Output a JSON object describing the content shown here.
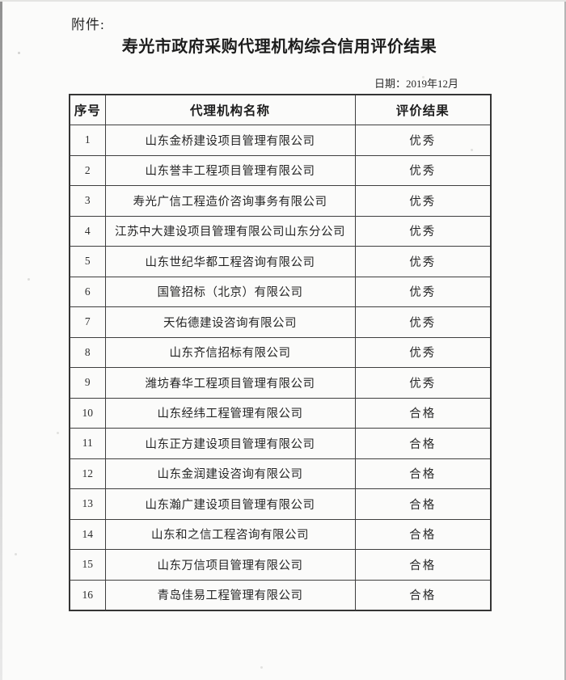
{
  "page": {
    "attachment_label": "附件:",
    "title": "寿光市政府采购代理机构综合信用评价结果",
    "date_label": "日期：2019年12月"
  },
  "table": {
    "columns": [
      "序号",
      "代理机构名称",
      "评价结果"
    ],
    "rows": [
      {
        "index": "1",
        "name": "山东金桥建设项目管理有限公司",
        "result": "优秀"
      },
      {
        "index": "2",
        "name": "山东誉丰工程项目管理有限公司",
        "result": "优秀"
      },
      {
        "index": "3",
        "name": "寿光广信工程造价咨询事务有限公司",
        "result": "优秀"
      },
      {
        "index": "4",
        "name": "江苏中大建设项目管理有限公司山东分公司",
        "result": "优秀"
      },
      {
        "index": "5",
        "name": "山东世纪华都工程咨询有限公司",
        "result": "优秀"
      },
      {
        "index": "6",
        "name": "国管招标（北京）有限公司",
        "result": "优秀"
      },
      {
        "index": "7",
        "name": "天佑德建设咨询有限公司",
        "result": "优秀"
      },
      {
        "index": "8",
        "name": "山东齐信招标有限公司",
        "result": "优秀"
      },
      {
        "index": "9",
        "name": "潍坊春华工程项目管理有限公司",
        "result": "优秀"
      },
      {
        "index": "10",
        "name": "山东经纬工程管理有限公司",
        "result": "合格"
      },
      {
        "index": "11",
        "name": "山东正方建设项目管理有限公司",
        "result": "合格"
      },
      {
        "index": "12",
        "name": "山东金润建设咨询有限公司",
        "result": "合格"
      },
      {
        "index": "13",
        "name": "山东瀚广建设项目管理有限公司",
        "result": "合格"
      },
      {
        "index": "14",
        "name": "山东和之信工程咨询有限公司",
        "result": "合格"
      },
      {
        "index": "15",
        "name": "山东万信项目管理有限公司",
        "result": "合格"
      },
      {
        "index": "16",
        "name": "青岛佳易工程管理有限公司",
        "result": "合格"
      }
    ]
  },
  "colors": {
    "text": "#262626",
    "border": "#3e3e3e",
    "page_background": "#fbfbfa"
  }
}
